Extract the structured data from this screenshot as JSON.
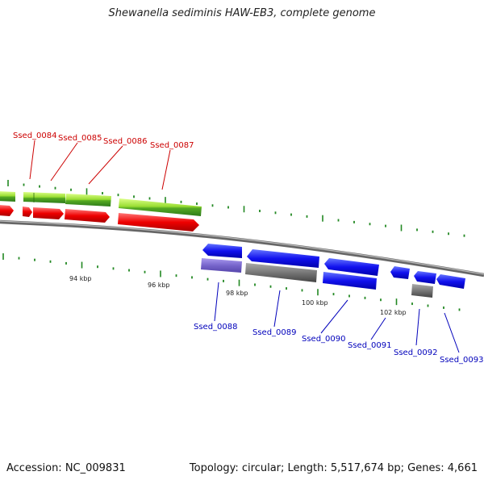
{
  "title": "Shewanella sediminis HAW-EB3, complete genome",
  "footer": {
    "accession": "Accession: NC_009831",
    "summary": "Topology: circular; Length: 5,517,674 bp; Genes: 4,661"
  },
  "colors": {
    "forward_gene_label": "#cc0000",
    "reverse_gene_label": "#0000bb",
    "forward_cds": "#ee0000",
    "forward_gene": "#99dd33",
    "reverse_cds": "#1111ee",
    "reverse_gene_gray": "#777777",
    "reverse_gene_purple": "#7766cc",
    "backbone": "#888888",
    "ticks": "#228822"
  },
  "scale_labels": [
    "94 kbp",
    "96 kbp",
    "98 kbp",
    "100 kbp",
    "102 kbp"
  ],
  "forward_genes": [
    "Ssed_0084",
    "Ssed_0085",
    "Ssed_0086",
    "Ssed_0087"
  ],
  "reverse_genes": [
    "Ssed_0088",
    "Ssed_0089",
    "Ssed_0090",
    "Ssed_0091",
    "Ssed_0092",
    "Ssed_0093"
  ]
}
